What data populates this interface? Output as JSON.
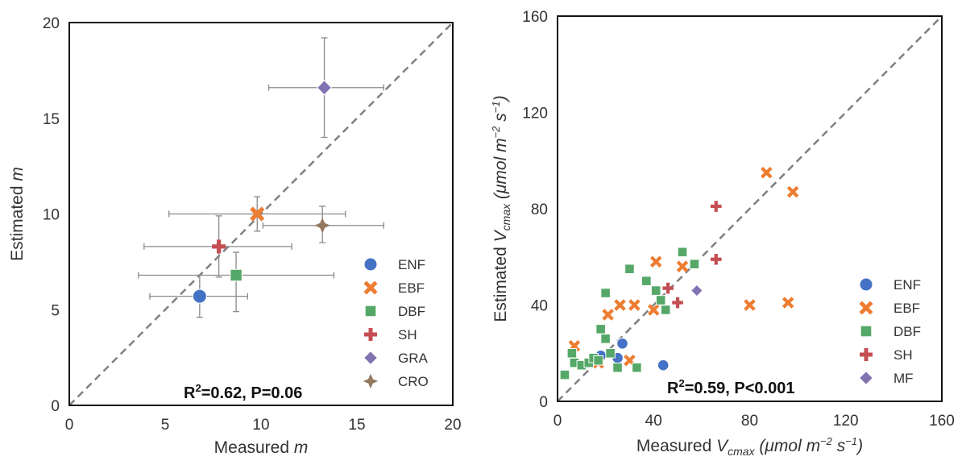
{
  "chart_data": [
    {
      "type": "scatter",
      "xlabel_main": "Measured ",
      "xlabel_var": "m",
      "ylabel_main": "Estimated ",
      "ylabel_var": "m",
      "xlim": [
        0,
        20
      ],
      "ylim": [
        0,
        20
      ],
      "xticks": [
        "0",
        "5",
        "10",
        "15",
        "20"
      ],
      "yticks": [
        "0",
        "5",
        "10",
        "15",
        "20"
      ],
      "grid": false,
      "legend_position": "bottom-right",
      "stat_r": "R",
      "stat_sup": "2",
      "stat_rest": "=0.62, P=0.06",
      "reference_line": "1:1 dashed",
      "series": [
        {
          "name": "ENF",
          "color": "#4472c4",
          "marker": "circle",
          "points": [
            {
              "x": 6.8,
              "y": 5.7,
              "xerr": [
                4.2,
                9.3
              ],
              "yerr": [
                4.6,
                6.8
              ]
            }
          ]
        },
        {
          "name": "EBF",
          "color": "#ed7d31",
          "marker": "x",
          "points": [
            {
              "x": 9.8,
              "y": 10.0,
              "xerr": [
                5.2,
                14.4
              ],
              "yerr": [
                9.1,
                10.9
              ]
            }
          ]
        },
        {
          "name": "DBF",
          "color": "#55a868",
          "marker": "square",
          "points": [
            {
              "x": 8.7,
              "y": 6.8,
              "xerr": [
                3.6,
                13.8
              ],
              "yerr": [
                4.9,
                8.0
              ]
            }
          ]
        },
        {
          "name": "SH",
          "color": "#c44e52",
          "marker": "plus",
          "points": [
            {
              "x": 7.8,
              "y": 8.3,
              "xerr": [
                3.9,
                11.6
              ],
              "yerr": [
                6.7,
                9.9
              ]
            }
          ]
        },
        {
          "name": "GRA",
          "color": "#8172b2",
          "marker": "diamond",
          "points": [
            {
              "x": 13.3,
              "y": 16.6,
              "xerr": [
                10.4,
                16.4
              ],
              "yerr": [
                14.0,
                19.2
              ]
            }
          ]
        },
        {
          "name": "CRO",
          "color": "#937860",
          "marker": "star4",
          "points": [
            {
              "x": 13.2,
              "y": 9.4,
              "xerr": [
                10.1,
                16.4
              ],
              "yerr": [
                8.5,
                10.4
              ]
            }
          ]
        }
      ]
    },
    {
      "type": "scatter",
      "xlabel_main": "Measured ",
      "xlabel_var": "V",
      "xlabel_sub": "cmax",
      "xlabel_unit_pre": " (μmol m",
      "xlabel_exp1": "−2",
      "xlabel_unit_mid": " s",
      "xlabel_exp2": "−1",
      "xlabel_unit_end": ")",
      "ylabel_main": "Estimated ",
      "ylabel_var": "V",
      "ylabel_sub": "cmax",
      "ylabel_unit_pre": " (μmol m",
      "ylabel_exp1": "−2",
      "ylabel_unit_mid": " s",
      "ylabel_exp2": "−1",
      "ylabel_unit_end": ")",
      "xlim": [
        0,
        160
      ],
      "ylim": [
        0,
        160
      ],
      "xticks": [
        "0",
        "40",
        "80",
        "120",
        "160"
      ],
      "yticks": [
        "0",
        "40",
        "80",
        "120",
        "160"
      ],
      "grid": false,
      "legend_position": "bottom-right",
      "stat_r": "R",
      "stat_sup": "2",
      "stat_rest": "=0.59, P<0.001",
      "reference_line": "1:1 dashed",
      "series": [
        {
          "name": "ENF",
          "color": "#4472c4",
          "marker": "circle",
          "points": [
            {
              "x": 18,
              "y": 19
            },
            {
              "x": 25,
              "y": 18
            },
            {
              "x": 27,
              "y": 24
            },
            {
              "x": 44,
              "y": 15
            }
          ]
        },
        {
          "name": "EBF",
          "color": "#ed7d31",
          "marker": "x",
          "points": [
            {
              "x": 7,
              "y": 23
            },
            {
              "x": 17,
              "y": 16
            },
            {
              "x": 21,
              "y": 36
            },
            {
              "x": 26,
              "y": 40
            },
            {
              "x": 32,
              "y": 40
            },
            {
              "x": 30,
              "y": 17
            },
            {
              "x": 40,
              "y": 38
            },
            {
              "x": 41,
              "y": 58
            },
            {
              "x": 52,
              "y": 56
            },
            {
              "x": 80,
              "y": 40
            },
            {
              "x": 87,
              "y": 95
            },
            {
              "x": 96,
              "y": 41
            },
            {
              "x": 98,
              "y": 87
            }
          ]
        },
        {
          "name": "DBF",
          "color": "#55a868",
          "marker": "square",
          "points": [
            {
              "x": 3,
              "y": 11
            },
            {
              "x": 6,
              "y": 20
            },
            {
              "x": 7,
              "y": 16
            },
            {
              "x": 10,
              "y": 15
            },
            {
              "x": 13,
              "y": 16
            },
            {
              "x": 15,
              "y": 18
            },
            {
              "x": 17,
              "y": 17
            },
            {
              "x": 18,
              "y": 30
            },
            {
              "x": 20,
              "y": 26
            },
            {
              "x": 20,
              "y": 45
            },
            {
              "x": 22,
              "y": 20
            },
            {
              "x": 25,
              "y": 14
            },
            {
              "x": 30,
              "y": 55
            },
            {
              "x": 33,
              "y": 14
            },
            {
              "x": 37,
              "y": 50
            },
            {
              "x": 41,
              "y": 46
            },
            {
              "x": 43,
              "y": 42
            },
            {
              "x": 45,
              "y": 38
            },
            {
              "x": 52,
              "y": 62
            },
            {
              "x": 57,
              "y": 57
            }
          ]
        },
        {
          "name": "SH",
          "color": "#c44e52",
          "marker": "plus",
          "points": [
            {
              "x": 46,
              "y": 47
            },
            {
              "x": 50,
              "y": 41
            },
            {
              "x": 66,
              "y": 59
            },
            {
              "x": 66,
              "y": 81
            }
          ]
        },
        {
          "name": "MF",
          "color": "#8172b2",
          "marker": "diamond",
          "points": [
            {
              "x": 58,
              "y": 46
            }
          ]
        }
      ]
    }
  ]
}
